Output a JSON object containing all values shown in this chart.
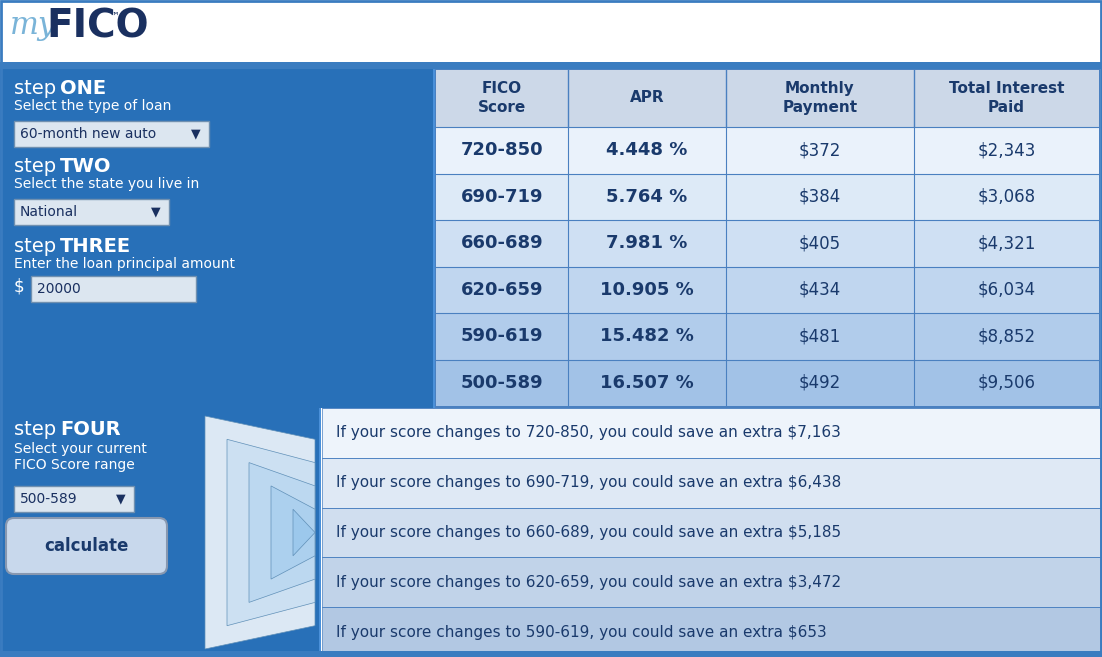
{
  "logo_my_color": "#7ab4d8",
  "logo_fico_color": "#1a3060",
  "left_panel_bg": "#2870b8",
  "table_header_bg": "#c8d8e8",
  "table_row_colors": [
    "#eaf2fb",
    "#ddeaf7",
    "#cfe0f3",
    "#c0d6ef",
    "#b1cceb",
    "#a2c2e7"
  ],
  "savings_row_colors": [
    "#eef4fb",
    "#dfe9f5",
    "#d0deef",
    "#c1d3e9",
    "#b2c8e3"
  ],
  "dark_blue_text": "#1a3a6c",
  "white_text": "#ffffff",
  "table_border_color": "#4a80c0",
  "outer_border_color": "#3a7cc0",
  "table_headers": [
    "FICO\nScore",
    "APR",
    "Monthly\nPayment",
    "Total Interest\nPaid"
  ],
  "table_data": [
    [
      "720-850",
      "4.448 %",
      "$372",
      "$2,343"
    ],
    [
      "690-719",
      "5.764 %",
      "$384",
      "$3,068"
    ],
    [
      "660-689",
      "7.981 %",
      "$405",
      "$4,321"
    ],
    [
      "620-659",
      "10.905 %",
      "$434",
      "$6,034"
    ],
    [
      "590-619",
      "15.482 %",
      "$481",
      "$8,852"
    ],
    [
      "500-589",
      "16.507 %",
      "$492",
      "$9,506"
    ]
  ],
  "savings_messages": [
    "If your score changes to 720-850, you could save an extra $7,163",
    "If your score changes to 690-719, you could save an extra $6,438",
    "If your score changes to 660-689, you could save an extra $5,185",
    "If your score changes to 620-659, you could save an extra $3,472",
    "If your score changes to 590-619, you could save an extra $653"
  ]
}
